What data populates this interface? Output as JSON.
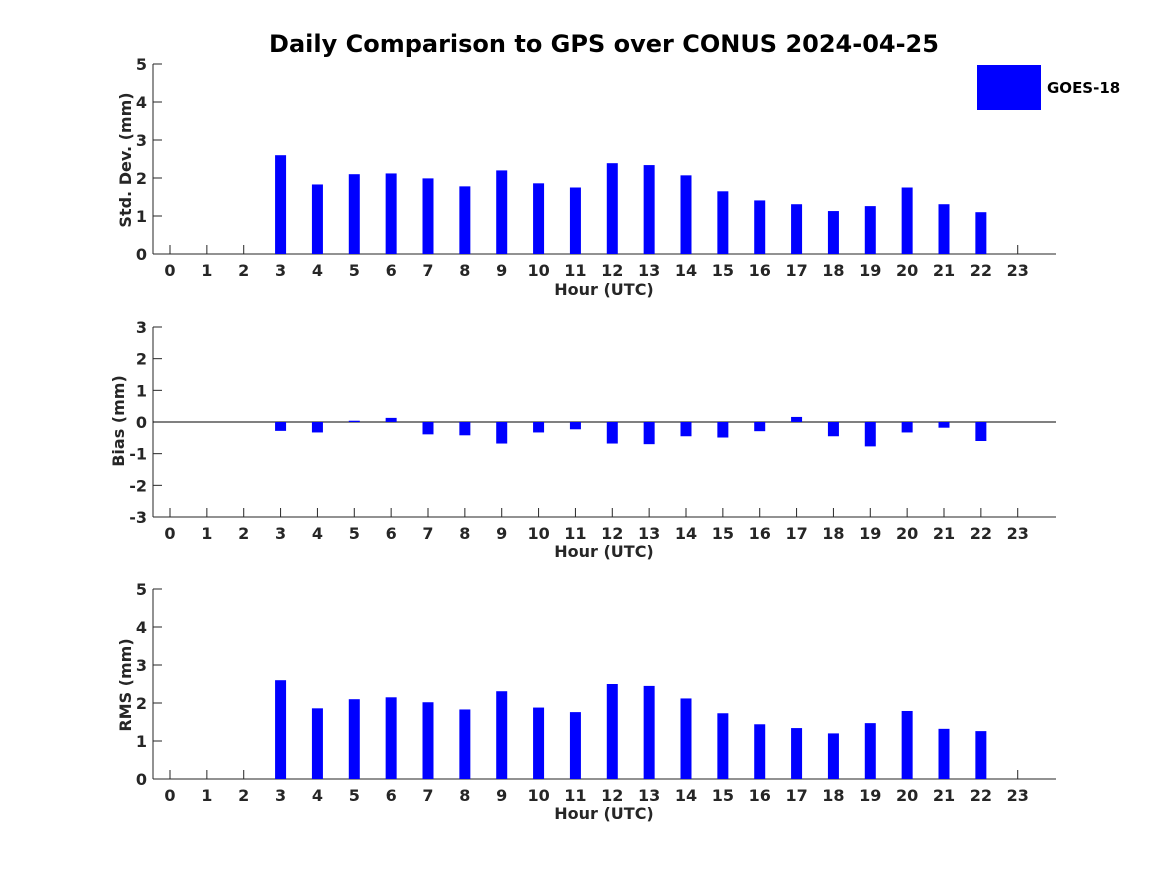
{
  "chart_data": {
    "type": "bar",
    "title": "Daily Comparison to GPS over CONUS 2024-04-25",
    "bar_color": "#0000ff",
    "legend": {
      "label": "GOES-18",
      "placement": "top-right"
    },
    "categories": [
      "0",
      "1",
      "2",
      "3",
      "4",
      "5",
      "6",
      "7",
      "8",
      "9",
      "10",
      "11",
      "12",
      "13",
      "14",
      "15",
      "16",
      "17",
      "18",
      "19",
      "20",
      "21",
      "22",
      "23"
    ],
    "panels": [
      {
        "key": "std",
        "ylabel": "Std. Dev. (mm)",
        "xlabel": "Hour (UTC)",
        "ylim": [
          0,
          5
        ],
        "yticks": [
          "0",
          "1",
          "2",
          "3",
          "4",
          "5"
        ],
        "series": [
          {
            "name": "GOES-18",
            "values": [
              null,
              null,
              null,
              2.6,
              1.83,
              2.1,
              2.12,
              1.99,
              1.78,
              2.2,
              1.86,
              1.75,
              2.39,
              2.34,
              2.07,
              1.65,
              1.41,
              1.31,
              1.13,
              1.26,
              1.75,
              1.31,
              1.1,
              null
            ]
          }
        ]
      },
      {
        "key": "bias",
        "ylabel": "Bias (mm)",
        "xlabel": "Hour (UTC)",
        "ylim": [
          -3,
          3
        ],
        "yticks": [
          "-3",
          "-2",
          "-1",
          "0",
          "1",
          "2",
          "3"
        ],
        "series": [
          {
            "name": "GOES-18",
            "values": [
              null,
              null,
              null,
              -0.28,
              -0.33,
              0.04,
              0.13,
              -0.39,
              -0.42,
              -0.68,
              -0.33,
              -0.23,
              -0.68,
              -0.7,
              -0.45,
              -0.49,
              -0.29,
              0.16,
              -0.45,
              -0.77,
              -0.33,
              -0.18,
              -0.6,
              null
            ]
          }
        ]
      },
      {
        "key": "rms",
        "ylabel": "RMS (mm)",
        "xlabel": "Hour (UTC)",
        "ylim": [
          0,
          5
        ],
        "yticks": [
          "0",
          "1",
          "2",
          "3",
          "4",
          "5"
        ],
        "series": [
          {
            "name": "GOES-18",
            "values": [
              null,
              null,
              null,
              2.6,
              1.86,
              2.1,
              2.15,
              2.02,
              1.83,
              2.31,
              1.88,
              1.76,
              2.5,
              2.45,
              2.12,
              1.73,
              1.44,
              1.34,
              1.2,
              1.47,
              1.79,
              1.32,
              1.26,
              null
            ]
          }
        ]
      }
    ]
  }
}
